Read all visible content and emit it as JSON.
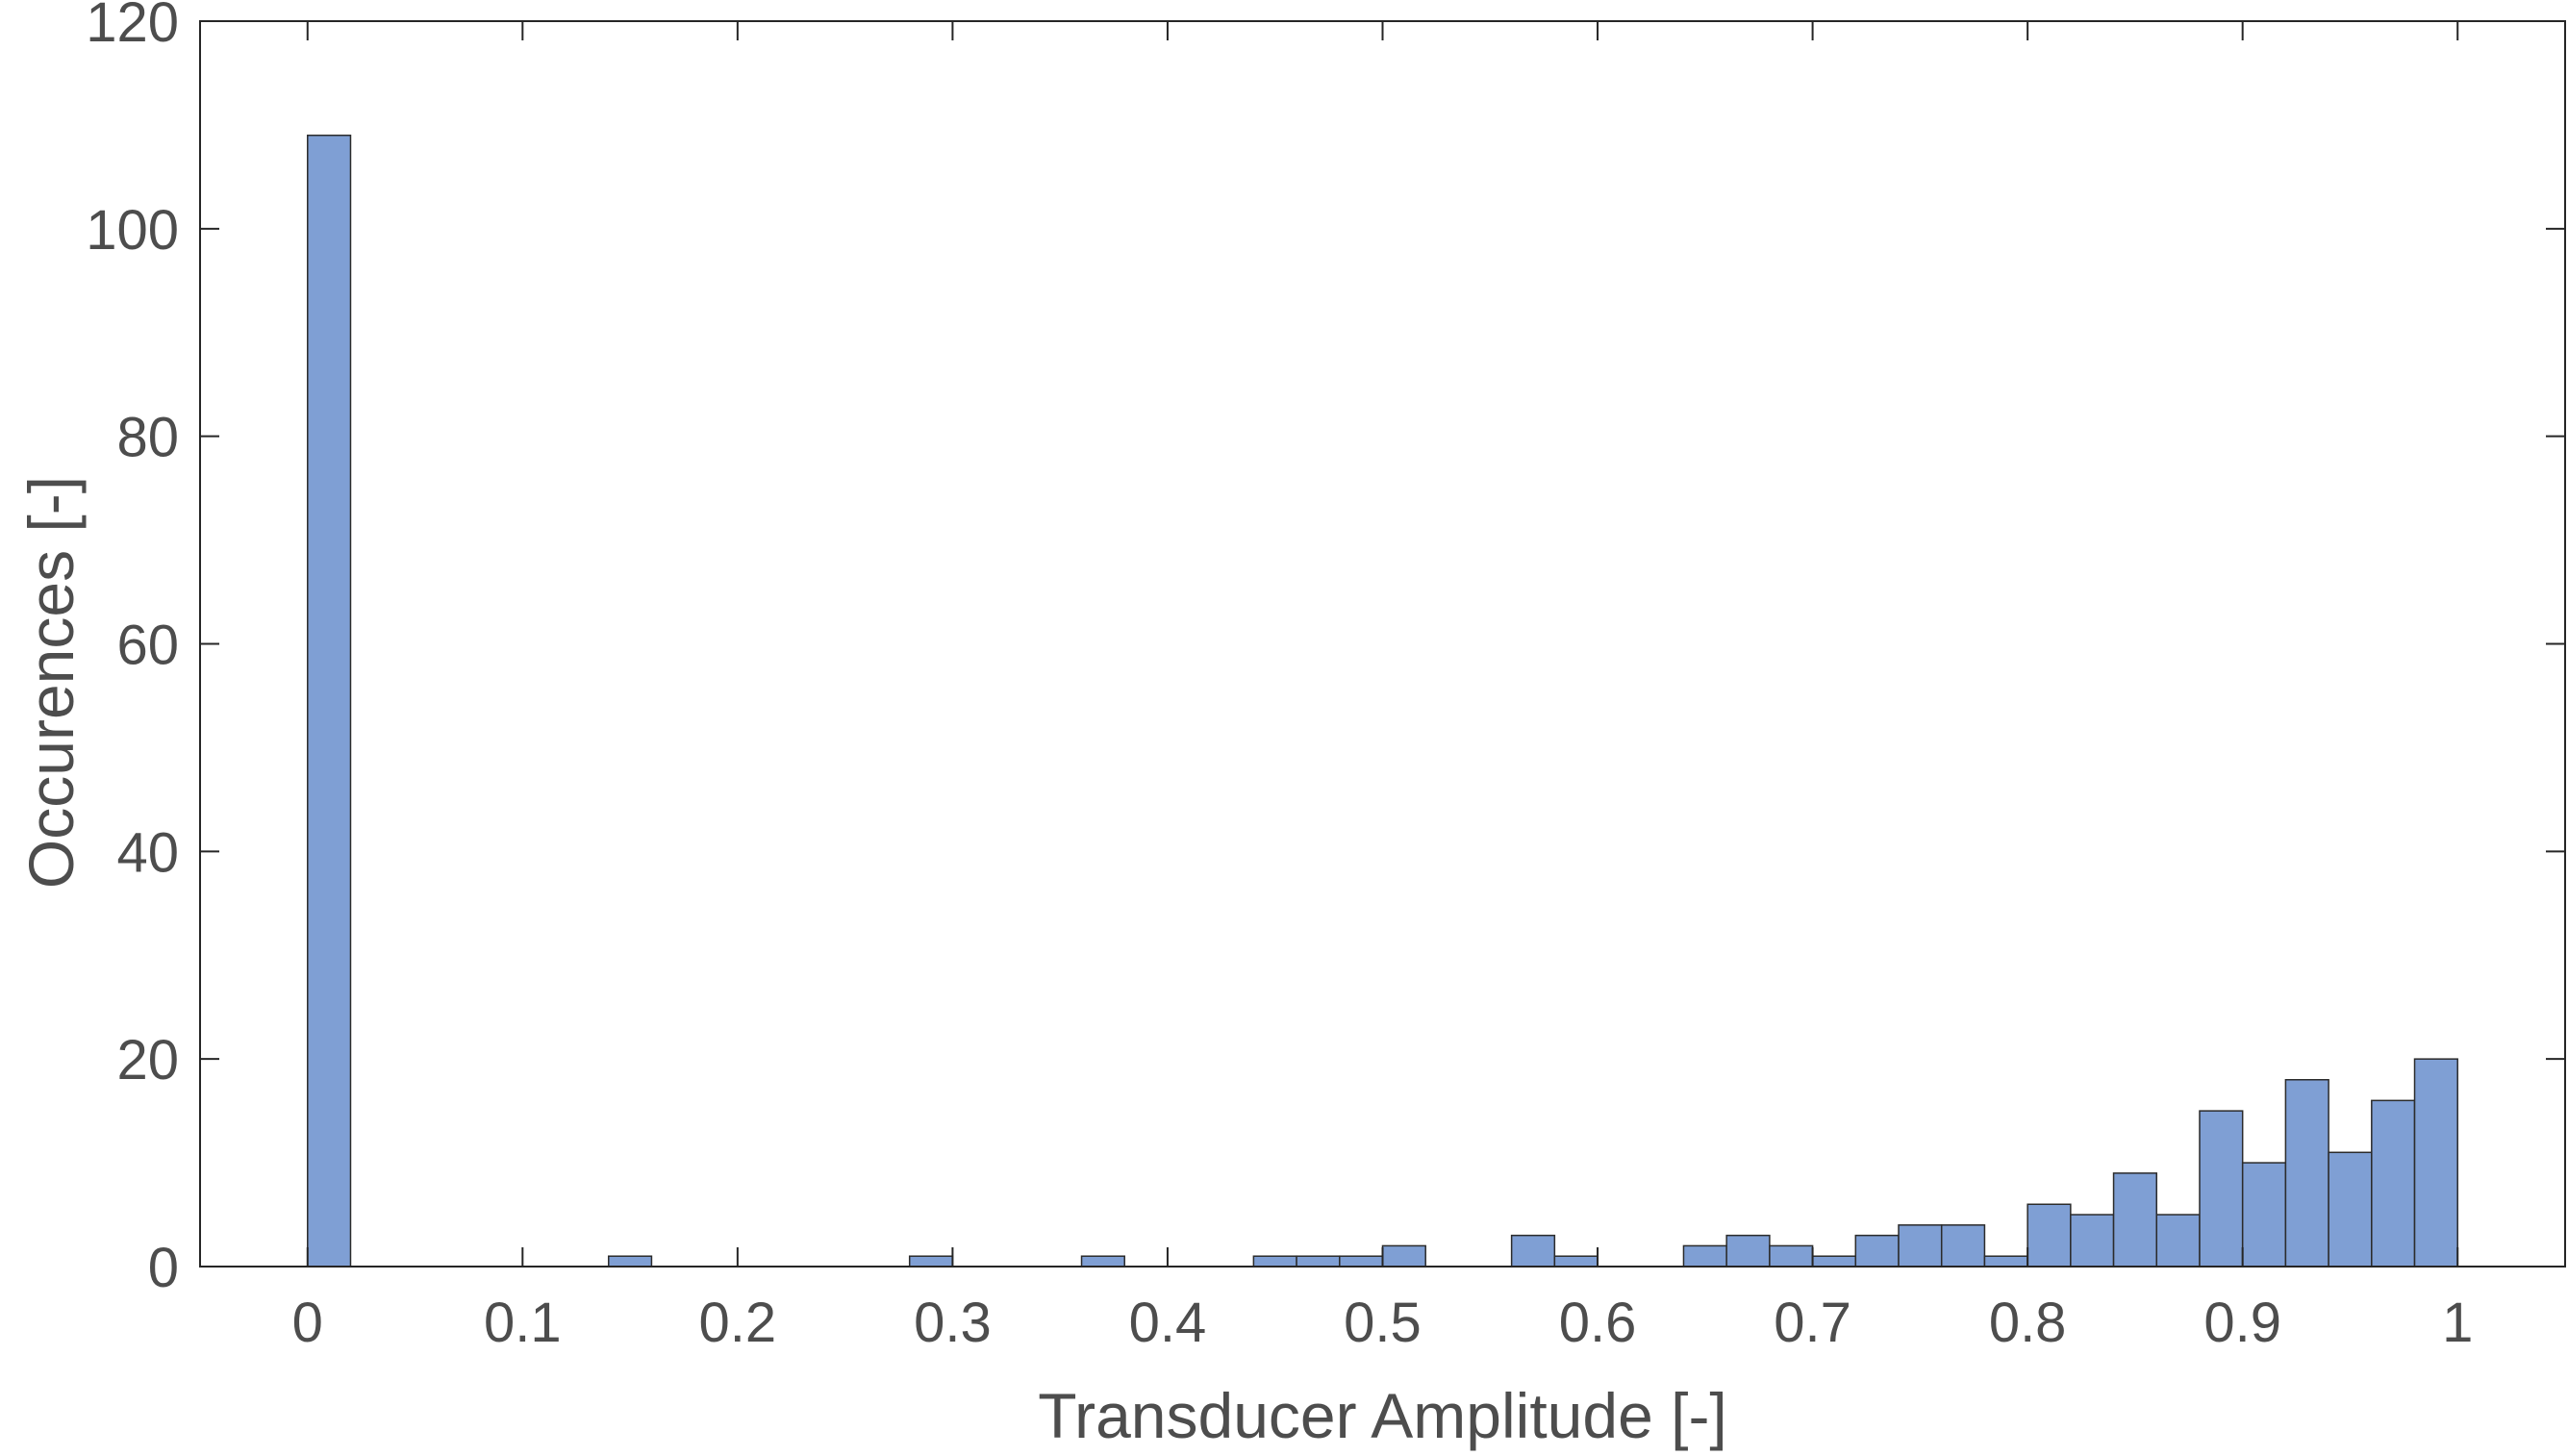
{
  "chart_data": {
    "type": "bar",
    "subtype": "histogram",
    "title": "",
    "xlabel": "Transducer Amplitude [-]",
    "ylabel": "Occurences [-]",
    "xlim": [
      -0.05,
      1.05
    ],
    "ylim": [
      0,
      120
    ],
    "bin_width": 0.02,
    "xticks": [
      0,
      0.1,
      0.2,
      0.3,
      0.4,
      0.5,
      0.6,
      0.7,
      0.8,
      0.9,
      1
    ],
    "xtick_labels": [
      "0",
      "0.1",
      "0.2",
      "0.3",
      "0.4",
      "0.5",
      "0.6",
      "0.7",
      "0.8",
      "0.9",
      "1"
    ],
    "yticks": [
      0,
      20,
      40,
      60,
      80,
      100,
      120
    ],
    "ytick_labels": [
      "0",
      "20",
      "40",
      "60",
      "80",
      "100",
      "120"
    ],
    "grid": false,
    "legend": "none",
    "bar_color": "#7f9fd4",
    "edge_color": "#2b2b2b",
    "bins": [
      {
        "x0": 0.0,
        "x1": 0.02,
        "count": 109
      },
      {
        "x0": 0.14,
        "x1": 0.16,
        "count": 1
      },
      {
        "x0": 0.28,
        "x1": 0.3,
        "count": 1
      },
      {
        "x0": 0.36,
        "x1": 0.38,
        "count": 1
      },
      {
        "x0": 0.44,
        "x1": 0.46,
        "count": 1
      },
      {
        "x0": 0.46,
        "x1": 0.48,
        "count": 1
      },
      {
        "x0": 0.48,
        "x1": 0.5,
        "count": 1
      },
      {
        "x0": 0.5,
        "x1": 0.52,
        "count": 2
      },
      {
        "x0": 0.56,
        "x1": 0.58,
        "count": 3
      },
      {
        "x0": 0.58,
        "x1": 0.6,
        "count": 1
      },
      {
        "x0": 0.64,
        "x1": 0.66,
        "count": 2
      },
      {
        "x0": 0.66,
        "x1": 0.68,
        "count": 3
      },
      {
        "x0": 0.68,
        "x1": 0.7,
        "count": 2
      },
      {
        "x0": 0.7,
        "x1": 0.72,
        "count": 1
      },
      {
        "x0": 0.72,
        "x1": 0.74,
        "count": 3
      },
      {
        "x0": 0.74,
        "x1": 0.76,
        "count": 4
      },
      {
        "x0": 0.76,
        "x1": 0.78,
        "count": 4
      },
      {
        "x0": 0.78,
        "x1": 0.8,
        "count": 1
      },
      {
        "x0": 0.8,
        "x1": 0.82,
        "count": 6
      },
      {
        "x0": 0.82,
        "x1": 0.84,
        "count": 5
      },
      {
        "x0": 0.84,
        "x1": 0.86,
        "count": 9
      },
      {
        "x0": 0.86,
        "x1": 0.88,
        "count": 5
      },
      {
        "x0": 0.88,
        "x1": 0.9,
        "count": 15
      },
      {
        "x0": 0.9,
        "x1": 0.92,
        "count": 10
      },
      {
        "x0": 0.92,
        "x1": 0.94,
        "count": 18
      },
      {
        "x0": 0.94,
        "x1": 0.96,
        "count": 11
      },
      {
        "x0": 0.96,
        "x1": 0.98,
        "count": 16
      },
      {
        "x0": 0.98,
        "x1": 1.0,
        "count": 20
      }
    ]
  }
}
